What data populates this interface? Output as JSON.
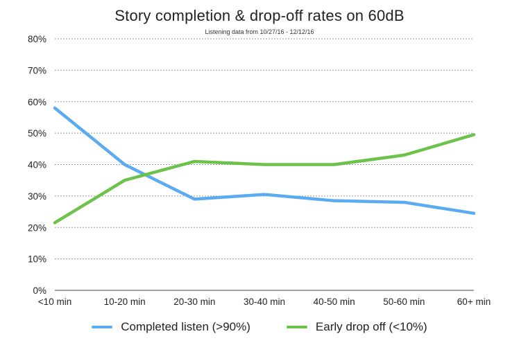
{
  "chart_data": {
    "type": "line",
    "title": "Story completion & drop-off rates on 60dB",
    "subtitle": "Listening data from 10/27/16 - 12/12/16",
    "categories": [
      "<10 min",
      "10-20 min",
      "20-30 min",
      "30-40 min",
      "40-50 min",
      "50-60 min",
      "60+ min"
    ],
    "ylim": [
      0,
      80
    ],
    "yticks": [
      "0%",
      "10%",
      "20%",
      "30%",
      "40%",
      "50%",
      "60%",
      "70%",
      "80%"
    ],
    "ytick_values": [
      0,
      10,
      20,
      30,
      40,
      50,
      60,
      70,
      80
    ],
    "grid": true,
    "legend_position": "bottom",
    "series": [
      {
        "name": "Completed listen (>90%)",
        "color": "#5aabf0",
        "values": [
          58,
          40,
          29,
          30.5,
          28.5,
          28,
          24.5
        ]
      },
      {
        "name": "Early drop off (<10%)",
        "color": "#6cc24a",
        "values": [
          21.5,
          35,
          41,
          40,
          40,
          43,
          49.5
        ]
      }
    ]
  }
}
